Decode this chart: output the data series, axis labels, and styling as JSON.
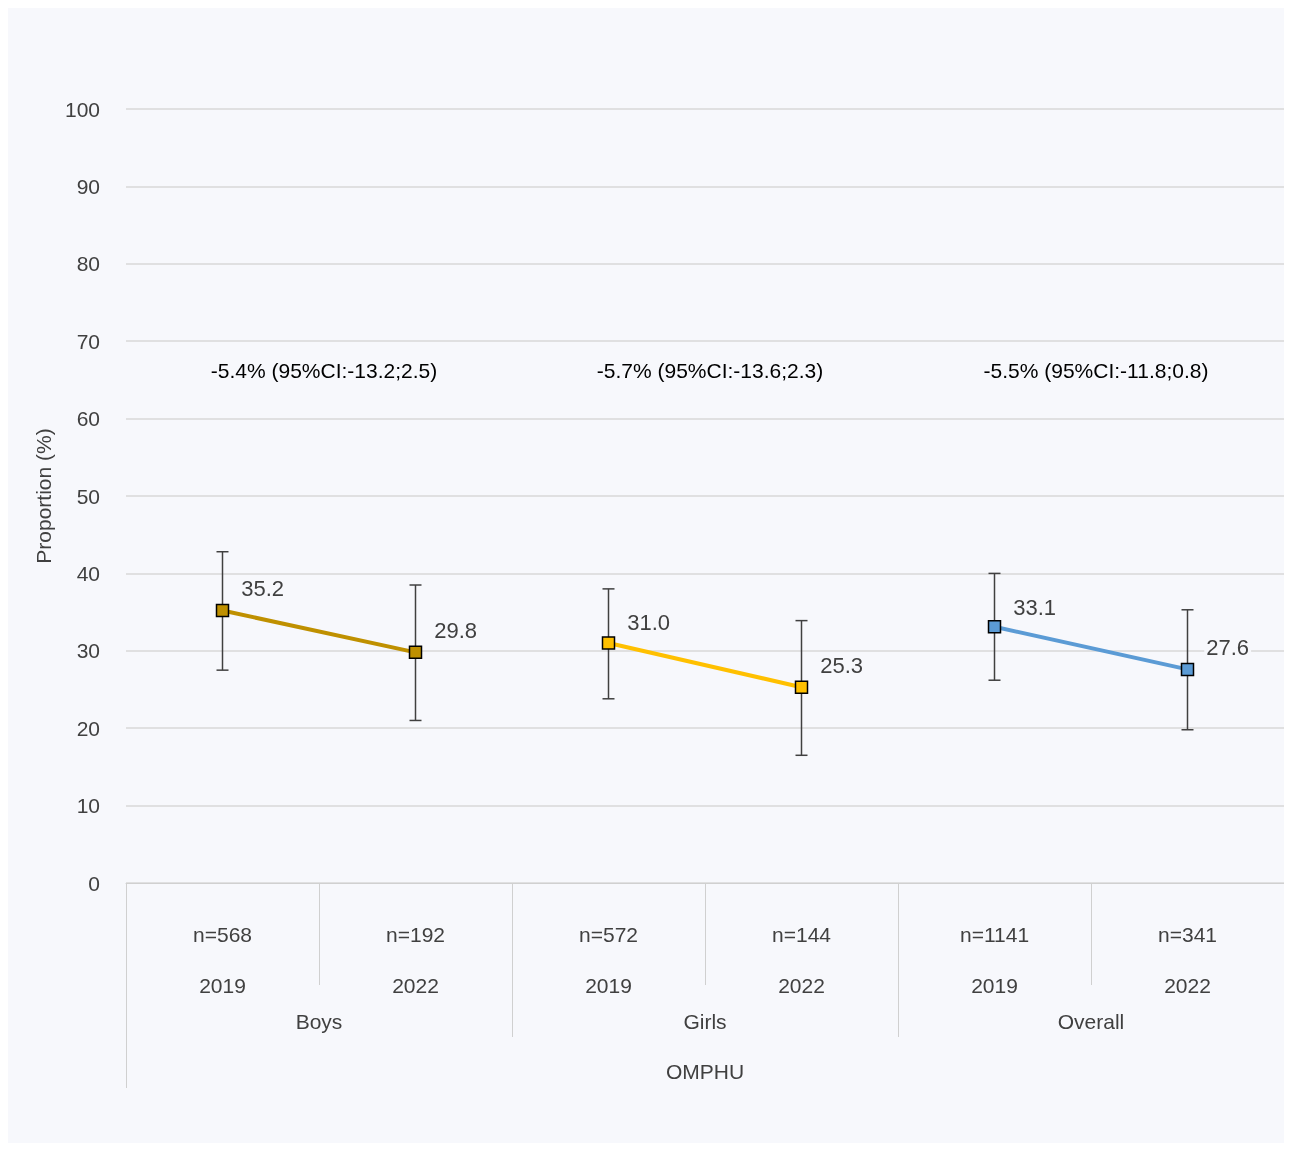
{
  "chart_data": {
    "type": "line",
    "ylabel": "Proportion (%)",
    "categories": [
      "n=568\n2019",
      "n=192\n2022",
      "n=572\n2019",
      "n=144\n2022",
      "n=1141\n2019",
      "n=341\n2022"
    ],
    "series": [
      {
        "color": "#bf9000",
        "values": [
          35.2,
          29.8,
          null,
          null,
          null,
          null
        ],
        "value_labels": [
          "35.2",
          "29.8",
          null,
          null,
          null,
          null
        ],
        "errors": [
          [
            27.5,
            42.8
          ],
          [
            21.0,
            38.5
          ],
          null,
          null,
          null,
          null
        ]
      },
      {
        "color": "#ffc000",
        "values": [
          null,
          null,
          31.0,
          25.3,
          null,
          null
        ],
        "value_labels": [
          null,
          null,
          "31.0",
          "25.3",
          null,
          null
        ],
        "errors": [
          null,
          null,
          [
            23.8,
            38.0
          ],
          [
            16.5,
            33.9
          ],
          null,
          null
        ]
      },
      {
        "color": "#5b9bd5",
        "values": [
          null,
          null,
          null,
          null,
          33.1,
          27.6
        ],
        "value_labels": [
          null,
          null,
          null,
          null,
          "33.1",
          "27.6"
        ],
        "errors": [
          null,
          null,
          null,
          null,
          [
            26.2,
            40.0
          ],
          [
            19.8,
            35.3
          ]
        ]
      }
    ],
    "annotations": [
      "-5.4% (95%CI:-13.2;2.5)",
      "-5.7% (95%CI:-13.6;2.3)",
      "-5.5% (95%CI:-11.8;0.8)",
      "Boys",
      "Girls",
      "Overall",
      "OMPHU"
    ],
    "ylim": [
      0,
      100
    ],
    "yticks": [
      0,
      10,
      20,
      30,
      40,
      50,
      60,
      70,
      80,
      90,
      100
    ],
    "grid": "y",
    "marker": "square",
    "line_style": "solid"
  }
}
